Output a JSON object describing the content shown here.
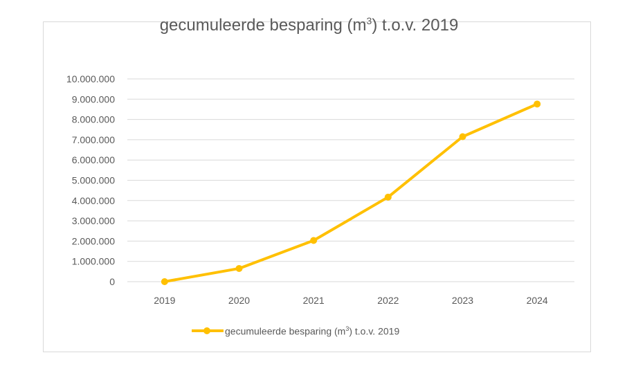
{
  "chart_data": {
    "type": "line",
    "title": {
      "prefix": "gecumuleerde besparing (m",
      "superscript": "3",
      "suffix": ") t.o.v. 2019"
    },
    "categories": [
      "2019",
      "2020",
      "2021",
      "2022",
      "2023",
      "2024"
    ],
    "series": [
      {
        "name_prefix": "gecumuleerde besparing (m",
        "name_superscript": "3",
        "name_suffix": ") t.o.v. 2019",
        "values": [
          0,
          650000,
          2030000,
          4170000,
          7150000,
          8760000
        ],
        "color": "#FFC000"
      }
    ],
    "y_ticks": [
      {
        "value": 0,
        "label": "0"
      },
      {
        "value": 1000000,
        "label": "1.000.000"
      },
      {
        "value": 2000000,
        "label": "2.000.000"
      },
      {
        "value": 3000000,
        "label": "3.000.000"
      },
      {
        "value": 4000000,
        "label": "4.000.000"
      },
      {
        "value": 5000000,
        "label": "5.000.000"
      },
      {
        "value": 6000000,
        "label": "6.000.000"
      },
      {
        "value": 7000000,
        "label": "7.000.000"
      },
      {
        "value": 8000000,
        "label": "8.000.000"
      },
      {
        "value": 9000000,
        "label": "9.000.000"
      },
      {
        "value": 10000000,
        "label": "10.000.000"
      }
    ],
    "ylim": [
      0,
      10000000
    ],
    "grid": true,
    "legend_position": "bottom",
    "gridline_color": "#D9D9D9",
    "text_color": "#595959"
  }
}
